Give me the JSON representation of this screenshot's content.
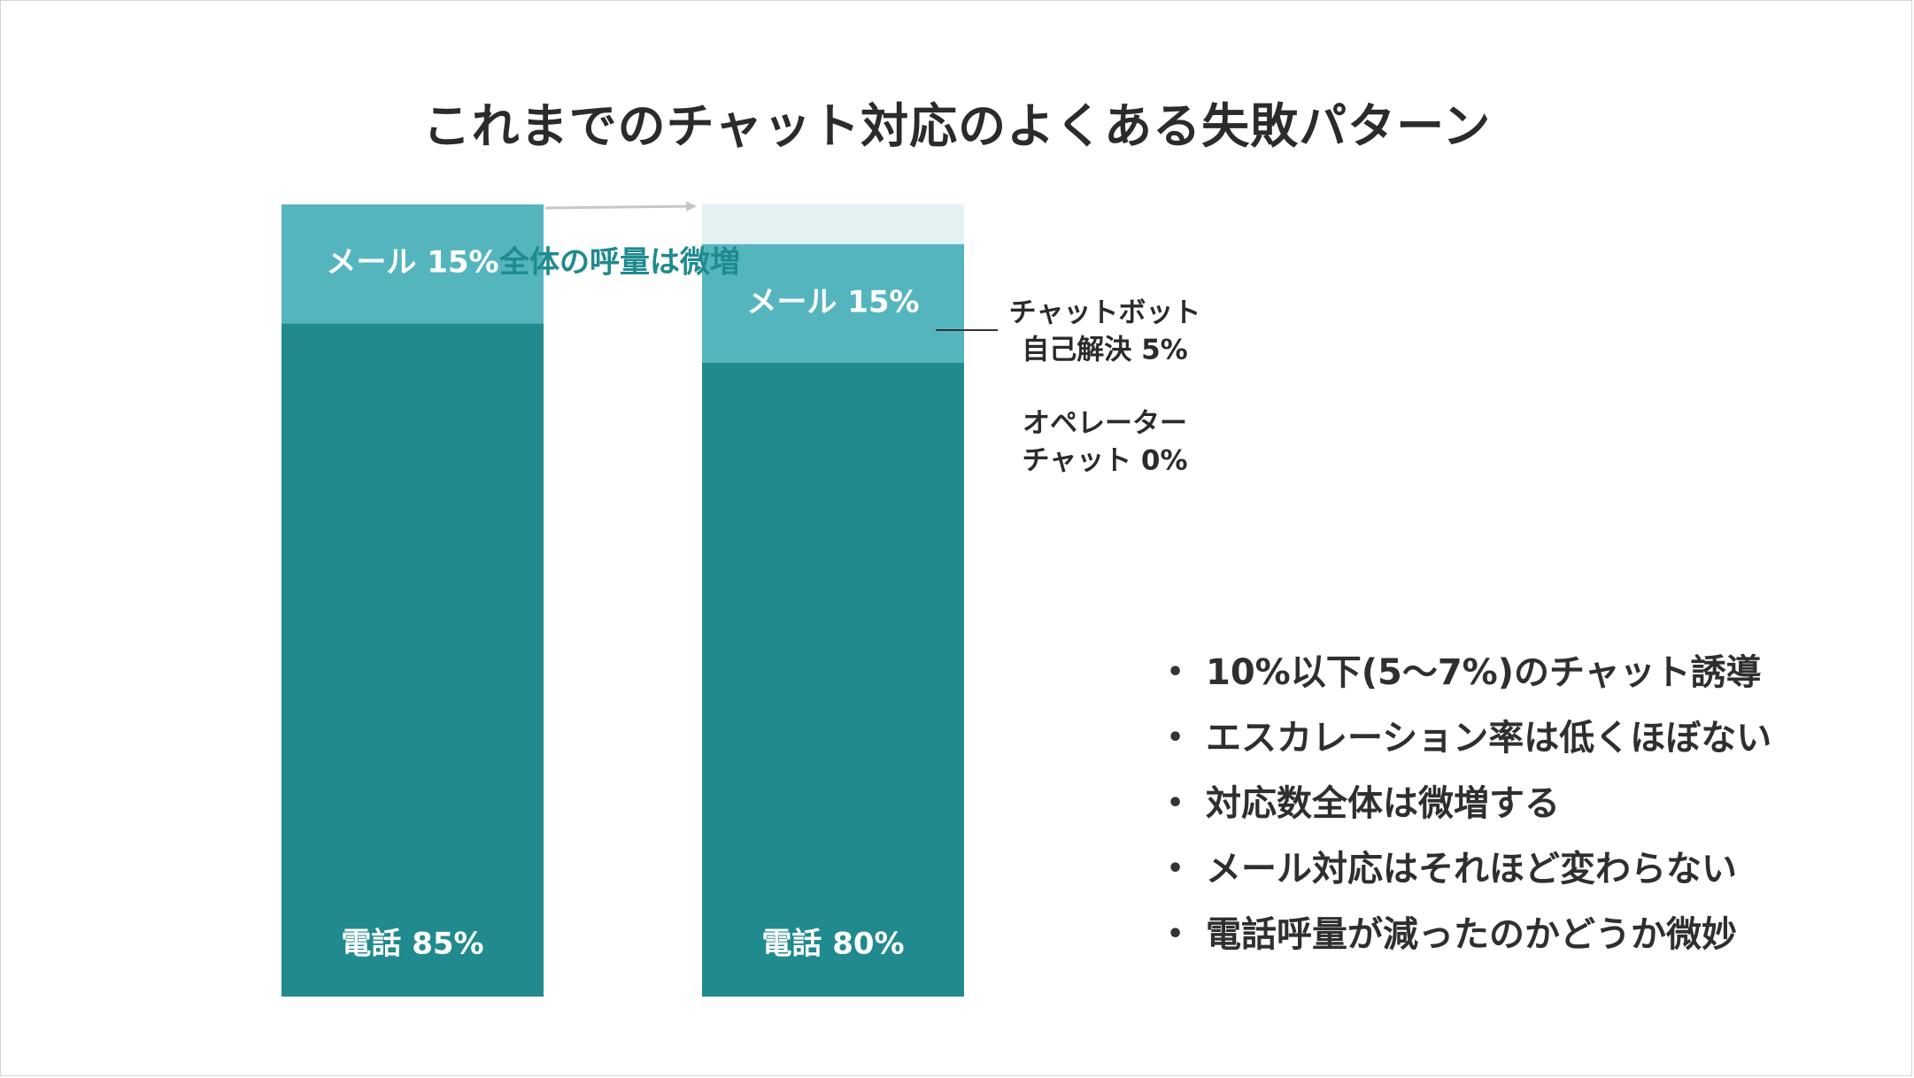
{
  "slide": {
    "title": "これまでのチャット対応のよくある失敗パターン"
  },
  "chart_data": {
    "type": "bar",
    "stacked": true,
    "categories": [
      "",
      ""
    ],
    "series": [
      {
        "name": "電話",
        "values": [
          85,
          80
        ]
      },
      {
        "name": "メール",
        "values": [
          15,
          15
        ]
      },
      {
        "name": "チャットボット自己解決",
        "values": [
          0,
          5
        ]
      },
      {
        "name": "オペレーターチャット",
        "values": [
          0,
          0
        ]
      }
    ],
    "segment_labels": [
      [
        "電話 85%",
        "メール 15%"
      ],
      [
        "電話 80%",
        "メール 15%"
      ]
    ],
    "side_labels": {
      "chatbot": [
        "チャットボット",
        "自己解決 5%"
      ],
      "operator": [
        "オペレーター",
        "チャット 0%"
      ]
    },
    "annotation": "全体の呼量は微増",
    "colors": {
      "phone": "#218a8e",
      "mail": "#55b5bf",
      "chatbot": "#e4f1f2",
      "annotation": "#1f8a8f"
    },
    "ylim": [
      0,
      105
    ],
    "grid": false,
    "legend": "none"
  },
  "bullets": [
    "10%以下(5～7%)のチャット誘導",
    "エスカレーション率は低くほぼない",
    "対応数全体は微増する",
    "メール対応はそれほど変わらない",
    "電話呼量が減ったのかどうか微妙"
  ],
  "bullet_marker": "•"
}
